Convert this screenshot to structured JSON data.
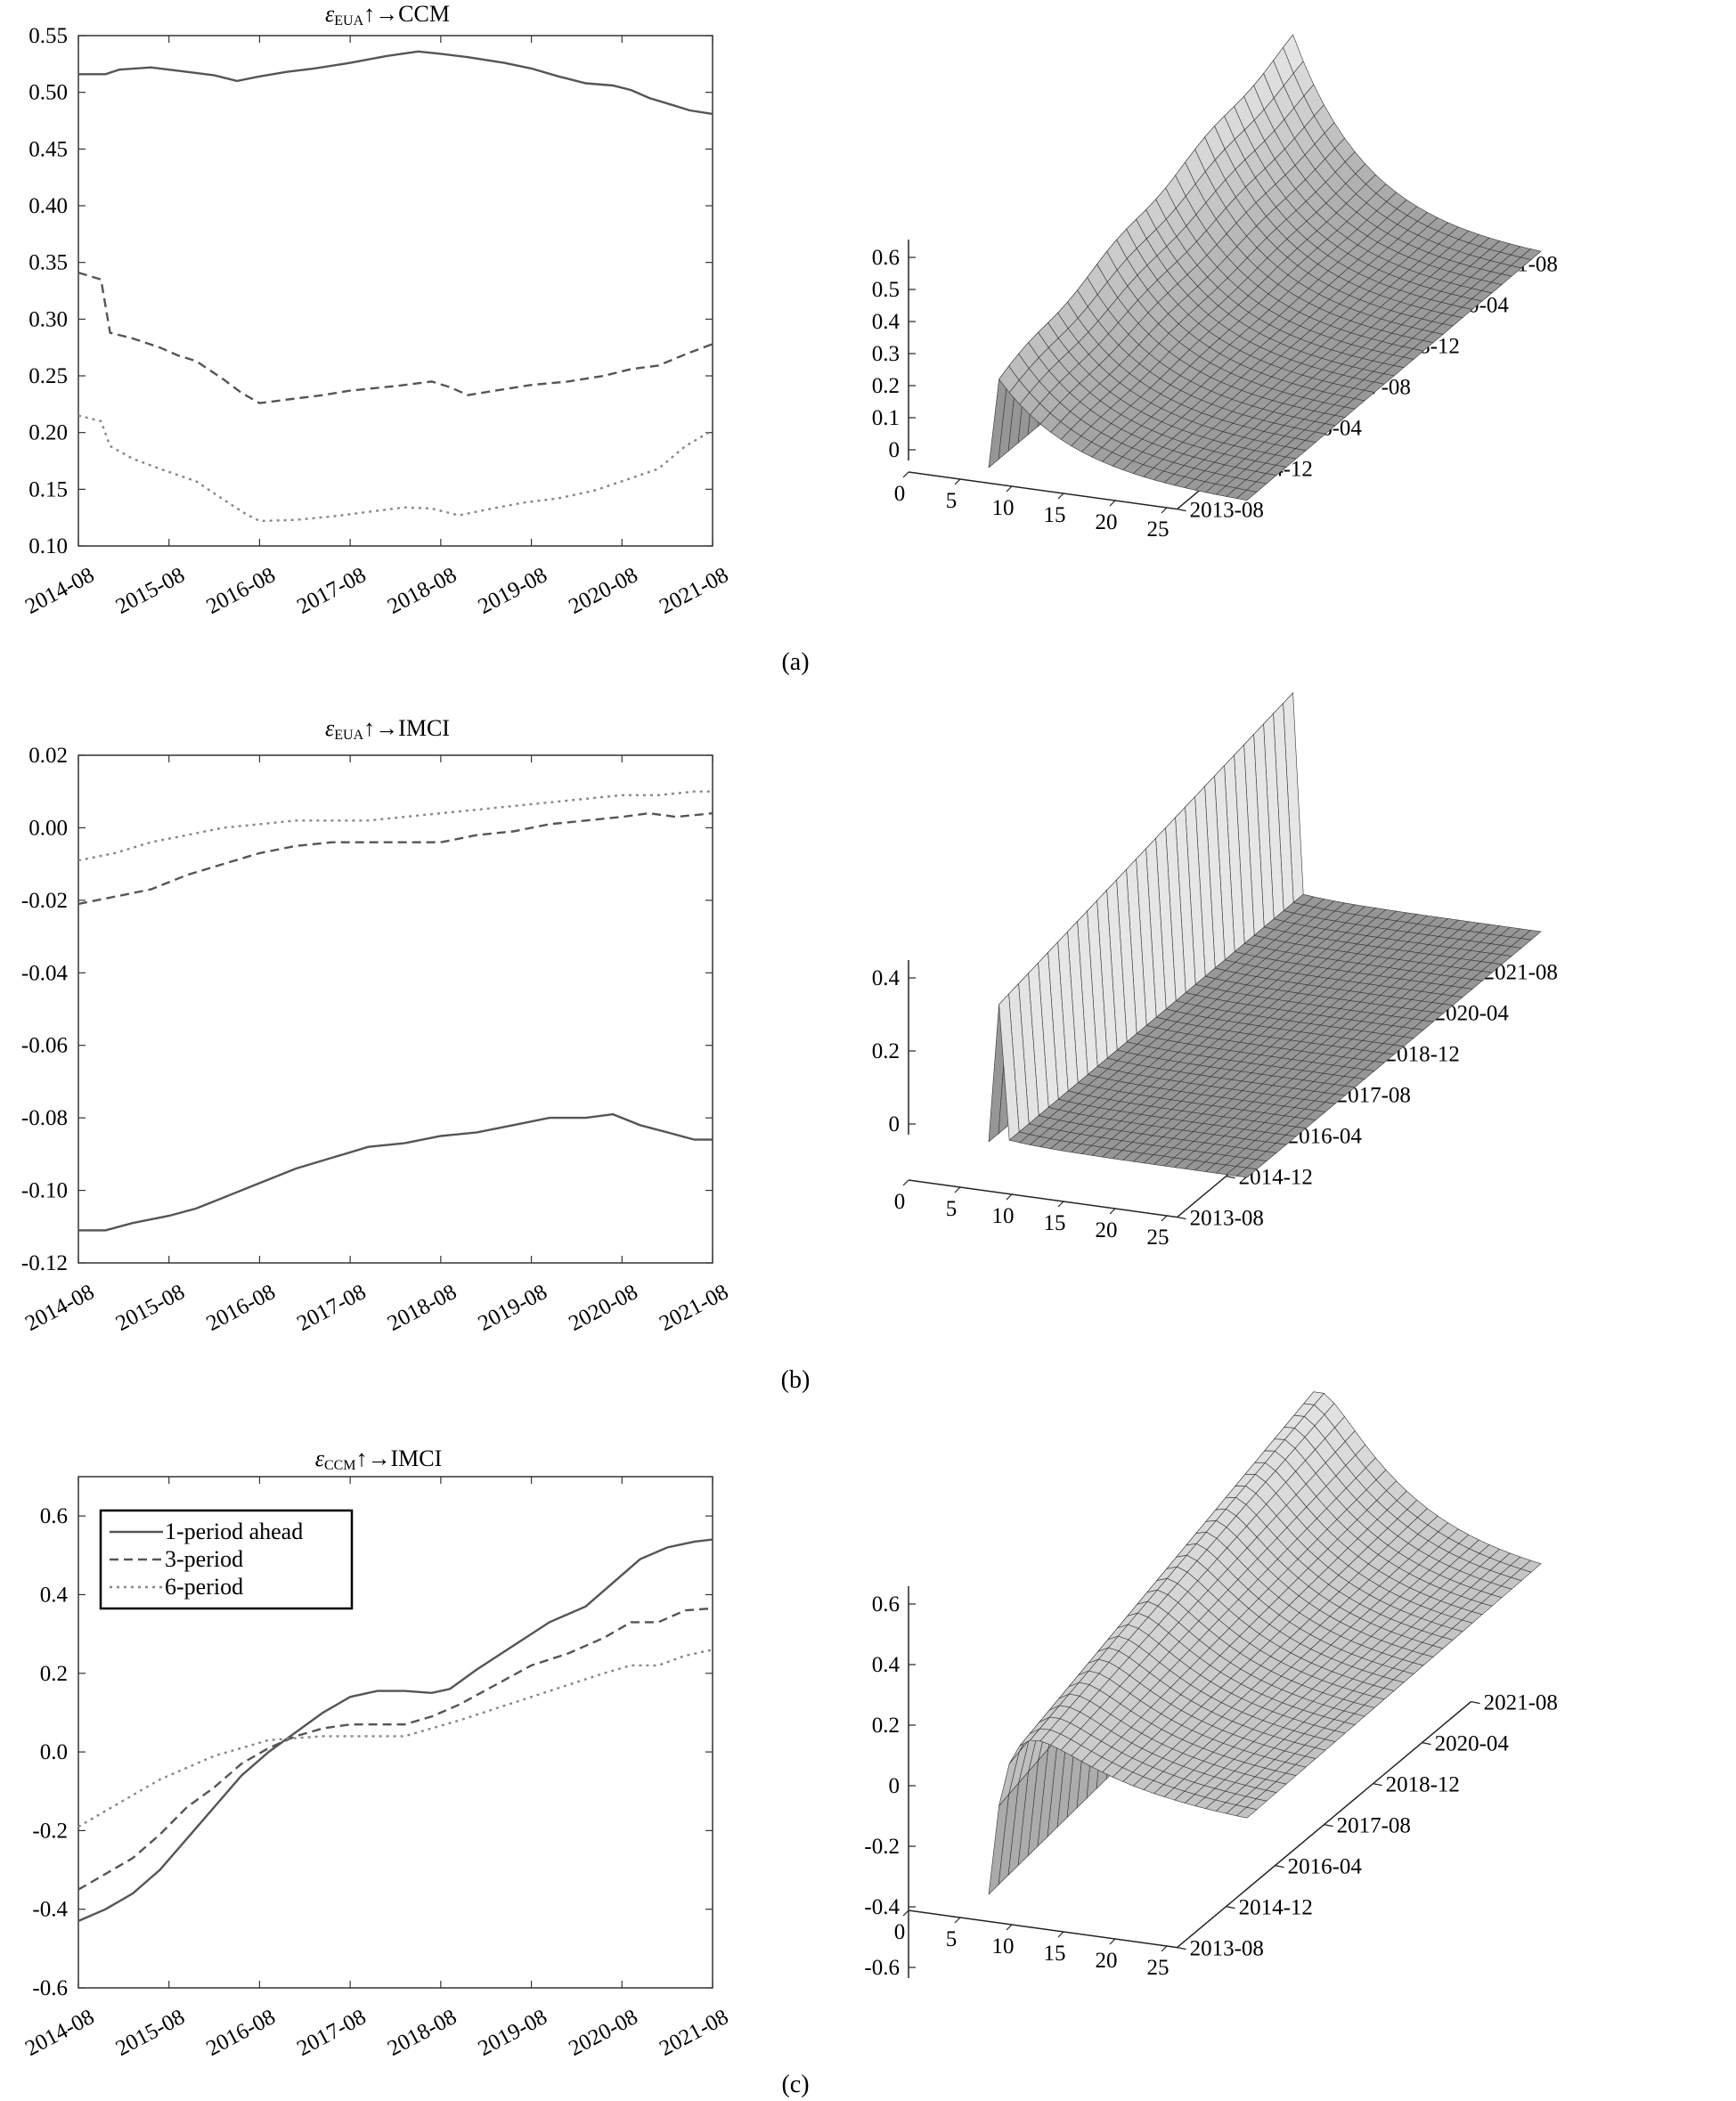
{
  "panel_labels": [
    "(a)",
    "(b)",
    "(c)"
  ],
  "surface_axes": {
    "horizon_ticks": [
      "0",
      "5",
      "10",
      "15",
      "20",
      "25"
    ],
    "date_ticks": [
      "2013-08",
      "2014-12",
      "2016-04",
      "2017-08",
      "2018-12",
      "2020-04",
      "2021-08"
    ]
  },
  "legend": [
    "1-period ahead",
    "3-period",
    "6-period"
  ],
  "chart_data": [
    {
      "type": "line",
      "panel": "(a)",
      "title_prefix": "ε",
      "title_sub": "EUA",
      "title_suffix": "↑→CCM",
      "x_ticks": [
        "2014-08",
        "2015-08",
        "2016-08",
        "2017-08",
        "2018-08",
        "2019-08",
        "2020-08",
        "2021-08"
      ],
      "y_ticks": [
        "0.10",
        "0.15",
        "0.20",
        "0.25",
        "0.30",
        "0.35",
        "0.40",
        "0.45",
        "0.50",
        "0.55"
      ],
      "ylim": [
        0.1,
        0.55
      ],
      "xlim": [
        0,
        7
      ],
      "series": [
        {
          "style": "solid",
          "points": [
            [
              0,
              0.516
            ],
            [
              0.3,
              0.516
            ],
            [
              0.45,
              0.52
            ],
            [
              0.8,
              0.522
            ],
            [
              1.0,
              0.52
            ],
            [
              1.2,
              0.518
            ],
            [
              1.5,
              0.515
            ],
            [
              1.75,
              0.51
            ],
            [
              2.0,
              0.514
            ],
            [
              2.3,
              0.518
            ],
            [
              2.6,
              0.521
            ],
            [
              3.0,
              0.526
            ],
            [
              3.4,
              0.532
            ],
            [
              3.75,
              0.536
            ],
            [
              4.0,
              0.534
            ],
            [
              4.3,
              0.531
            ],
            [
              4.7,
              0.526
            ],
            [
              5.0,
              0.521
            ],
            [
              5.3,
              0.514
            ],
            [
              5.6,
              0.508
            ],
            [
              5.9,
              0.506
            ],
            [
              6.1,
              0.502
            ],
            [
              6.3,
              0.495
            ],
            [
              6.55,
              0.489
            ],
            [
              6.75,
              0.484
            ],
            [
              7.0,
              0.481
            ]
          ]
        },
        {
          "style": "dashed",
          "points": [
            [
              0,
              0.341
            ],
            [
              0.25,
              0.335
            ],
            [
              0.35,
              0.288
            ],
            [
              0.6,
              0.283
            ],
            [
              0.9,
              0.275
            ],
            [
              1.1,
              0.268
            ],
            [
              1.3,
              0.263
            ],
            [
              1.6,
              0.247
            ],
            [
              1.8,
              0.235
            ],
            [
              2.0,
              0.226
            ],
            [
              2.3,
              0.229
            ],
            [
              2.7,
              0.233
            ],
            [
              3.0,
              0.237
            ],
            [
              3.5,
              0.241
            ],
            [
              3.9,
              0.245
            ],
            [
              4.1,
              0.24
            ],
            [
              4.3,
              0.233
            ],
            [
              4.6,
              0.237
            ],
            [
              5.0,
              0.242
            ],
            [
              5.4,
              0.245
            ],
            [
              5.8,
              0.25
            ],
            [
              6.1,
              0.256
            ],
            [
              6.4,
              0.259
            ],
            [
              6.7,
              0.269
            ],
            [
              7.0,
              0.278
            ]
          ]
        },
        {
          "style": "dotted",
          "points": [
            [
              0,
              0.215
            ],
            [
              0.25,
              0.21
            ],
            [
              0.35,
              0.188
            ],
            [
              0.6,
              0.177
            ],
            [
              0.9,
              0.168
            ],
            [
              1.3,
              0.157
            ],
            [
              1.6,
              0.141
            ],
            [
              1.85,
              0.128
            ],
            [
              2.0,
              0.122
            ],
            [
              2.4,
              0.123
            ],
            [
              2.8,
              0.126
            ],
            [
              3.2,
              0.13
            ],
            [
              3.6,
              0.134
            ],
            [
              3.9,
              0.133
            ],
            [
              4.2,
              0.127
            ],
            [
              4.5,
              0.132
            ],
            [
              4.9,
              0.138
            ],
            [
              5.3,
              0.142
            ],
            [
              5.7,
              0.149
            ],
            [
              6.0,
              0.157
            ],
            [
              6.4,
              0.168
            ],
            [
              6.7,
              0.188
            ],
            [
              7.0,
              0.202
            ]
          ]
        }
      ],
      "surface_z_ticks": [
        "0",
        "0.1",
        "0.2",
        "0.3",
        "0.4",
        "0.5",
        "0.6"
      ]
    },
    {
      "type": "line",
      "panel": "(b)",
      "title_prefix": "ε",
      "title_sub": "EUA",
      "title_suffix": "↑→IMCI",
      "x_ticks": [
        "2014-08",
        "2015-08",
        "2016-08",
        "2017-08",
        "2018-08",
        "2019-08",
        "2020-08",
        "2021-08"
      ],
      "y_ticks": [
        "-0.12",
        "-0.10",
        "-0.08",
        "-0.06",
        "-0.04",
        "-0.02",
        "0.00",
        "0.02"
      ],
      "ylim": [
        -0.12,
        0.02
      ],
      "xlim": [
        0,
        7
      ],
      "series": [
        {
          "style": "solid",
          "points": [
            [
              0,
              -0.111
            ],
            [
              0.3,
              -0.111
            ],
            [
              0.6,
              -0.109
            ],
            [
              1.0,
              -0.107
            ],
            [
              1.3,
              -0.105
            ],
            [
              1.6,
              -0.102
            ],
            [
              2.0,
              -0.098
            ],
            [
              2.4,
              -0.094
            ],
            [
              2.8,
              -0.091
            ],
            [
              3.2,
              -0.088
            ],
            [
              3.6,
              -0.087
            ],
            [
              4.0,
              -0.085
            ],
            [
              4.4,
              -0.084
            ],
            [
              4.8,
              -0.082
            ],
            [
              5.2,
              -0.08
            ],
            [
              5.6,
              -0.08
            ],
            [
              5.9,
              -0.079
            ],
            [
              6.2,
              -0.082
            ],
            [
              6.5,
              -0.084
            ],
            [
              6.8,
              -0.086
            ],
            [
              7.0,
              -0.086
            ]
          ]
        },
        {
          "style": "dashed",
          "points": [
            [
              0,
              -0.021
            ],
            [
              0.4,
              -0.019
            ],
            [
              0.8,
              -0.017
            ],
            [
              1.2,
              -0.013
            ],
            [
              1.6,
              -0.01
            ],
            [
              2.0,
              -0.007
            ],
            [
              2.4,
              -0.005
            ],
            [
              2.8,
              -0.004
            ],
            [
              3.2,
              -0.004
            ],
            [
              3.6,
              -0.004
            ],
            [
              4.0,
              -0.004
            ],
            [
              4.4,
              -0.002
            ],
            [
              4.8,
              -0.001
            ],
            [
              5.2,
              0.001
            ],
            [
              5.6,
              0.002
            ],
            [
              6.0,
              0.003
            ],
            [
              6.3,
              0.004
            ],
            [
              6.6,
              0.003
            ],
            [
              7.0,
              0.004
            ]
          ]
        },
        {
          "style": "dotted",
          "points": [
            [
              0,
              -0.009
            ],
            [
              0.4,
              -0.007
            ],
            [
              0.8,
              -0.004
            ],
            [
              1.2,
              -0.002
            ],
            [
              1.6,
              0.0
            ],
            [
              2.0,
              0.001
            ],
            [
              2.4,
              0.002
            ],
            [
              2.8,
              0.002
            ],
            [
              3.2,
              0.002
            ],
            [
              3.6,
              0.003
            ],
            [
              4.0,
              0.004
            ],
            [
              4.4,
              0.005
            ],
            [
              4.8,
              0.006
            ],
            [
              5.2,
              0.007
            ],
            [
              5.6,
              0.008
            ],
            [
              6.0,
              0.009
            ],
            [
              6.4,
              0.009
            ],
            [
              6.8,
              0.01
            ],
            [
              7.0,
              0.01
            ]
          ]
        }
      ],
      "surface_z_ticks": [
        "0",
        "0.2",
        "0.4"
      ]
    },
    {
      "type": "line",
      "panel": "(c)",
      "title_prefix": "ε",
      "title_sub": "CCM",
      "title_suffix": "↑→IMCI",
      "x_ticks": [
        "2014-08",
        "2015-08",
        "2016-08",
        "2017-08",
        "2018-08",
        "2019-08",
        "2020-08",
        "2021-08"
      ],
      "y_ticks": [
        "-0.6",
        "-0.4",
        "-0.2",
        "0.0",
        "0.2",
        "0.4",
        "0.6"
      ],
      "ylim": [
        -0.6,
        0.7
      ],
      "xlim": [
        0,
        7
      ],
      "series": [
        {
          "name": "1-period ahead",
          "style": "solid",
          "points": [
            [
              0,
              -0.43
            ],
            [
              0.3,
              -0.4
            ],
            [
              0.6,
              -0.36
            ],
            [
              0.9,
              -0.3
            ],
            [
              1.2,
              -0.22
            ],
            [
              1.5,
              -0.14
            ],
            [
              1.8,
              -0.06
            ],
            [
              2.1,
              0.0
            ],
            [
              2.4,
              0.05
            ],
            [
              2.7,
              0.1
            ],
            [
              3.0,
              0.14
            ],
            [
              3.3,
              0.155
            ],
            [
              3.6,
              0.155
            ],
            [
              3.9,
              0.15
            ],
            [
              4.1,
              0.16
            ],
            [
              4.4,
              0.21
            ],
            [
              4.8,
              0.27
            ],
            [
              5.2,
              0.33
            ],
            [
              5.6,
              0.37
            ],
            [
              5.9,
              0.43
            ],
            [
              6.2,
              0.49
            ],
            [
              6.5,
              0.52
            ],
            [
              6.8,
              0.535
            ],
            [
              7.0,
              0.54
            ]
          ]
        },
        {
          "name": "3-period",
          "style": "dashed",
          "points": [
            [
              0,
              -0.35
            ],
            [
              0.3,
              -0.31
            ],
            [
              0.6,
              -0.27
            ],
            [
              0.9,
              -0.21
            ],
            [
              1.2,
              -0.14
            ],
            [
              1.5,
              -0.09
            ],
            [
              1.8,
              -0.03
            ],
            [
              2.1,
              0.01
            ],
            [
              2.4,
              0.04
            ],
            [
              2.7,
              0.06
            ],
            [
              3.0,
              0.07
            ],
            [
              3.3,
              0.07
            ],
            [
              3.6,
              0.07
            ],
            [
              3.9,
              0.09
            ],
            [
              4.2,
              0.12
            ],
            [
              4.6,
              0.17
            ],
            [
              5.0,
              0.22
            ],
            [
              5.4,
              0.25
            ],
            [
              5.8,
              0.29
            ],
            [
              6.1,
              0.33
            ],
            [
              6.4,
              0.33
            ],
            [
              6.7,
              0.36
            ],
            [
              7.0,
              0.365
            ]
          ]
        },
        {
          "name": "6-period",
          "style": "dotted",
          "points": [
            [
              0,
              -0.19
            ],
            [
              0.3,
              -0.15
            ],
            [
              0.6,
              -0.11
            ],
            [
              0.9,
              -0.07
            ],
            [
              1.2,
              -0.04
            ],
            [
              1.5,
              -0.01
            ],
            [
              1.8,
              0.01
            ],
            [
              2.1,
              0.03
            ],
            [
              2.4,
              0.035
            ],
            [
              2.7,
              0.04
            ],
            [
              3.0,
              0.04
            ],
            [
              3.3,
              0.04
            ],
            [
              3.6,
              0.04
            ],
            [
              3.9,
              0.06
            ],
            [
              4.2,
              0.08
            ],
            [
              4.6,
              0.11
            ],
            [
              5.0,
              0.14
            ],
            [
              5.4,
              0.17
            ],
            [
              5.8,
              0.2
            ],
            [
              6.1,
              0.22
            ],
            [
              6.4,
              0.22
            ],
            [
              6.7,
              0.245
            ],
            [
              7.0,
              0.26
            ]
          ]
        }
      ],
      "surface_z_ticks": [
        "-0.6",
        "-0.4",
        "-0.2",
        "0",
        "0.2",
        "0.4",
        "0.6"
      ]
    }
  ]
}
